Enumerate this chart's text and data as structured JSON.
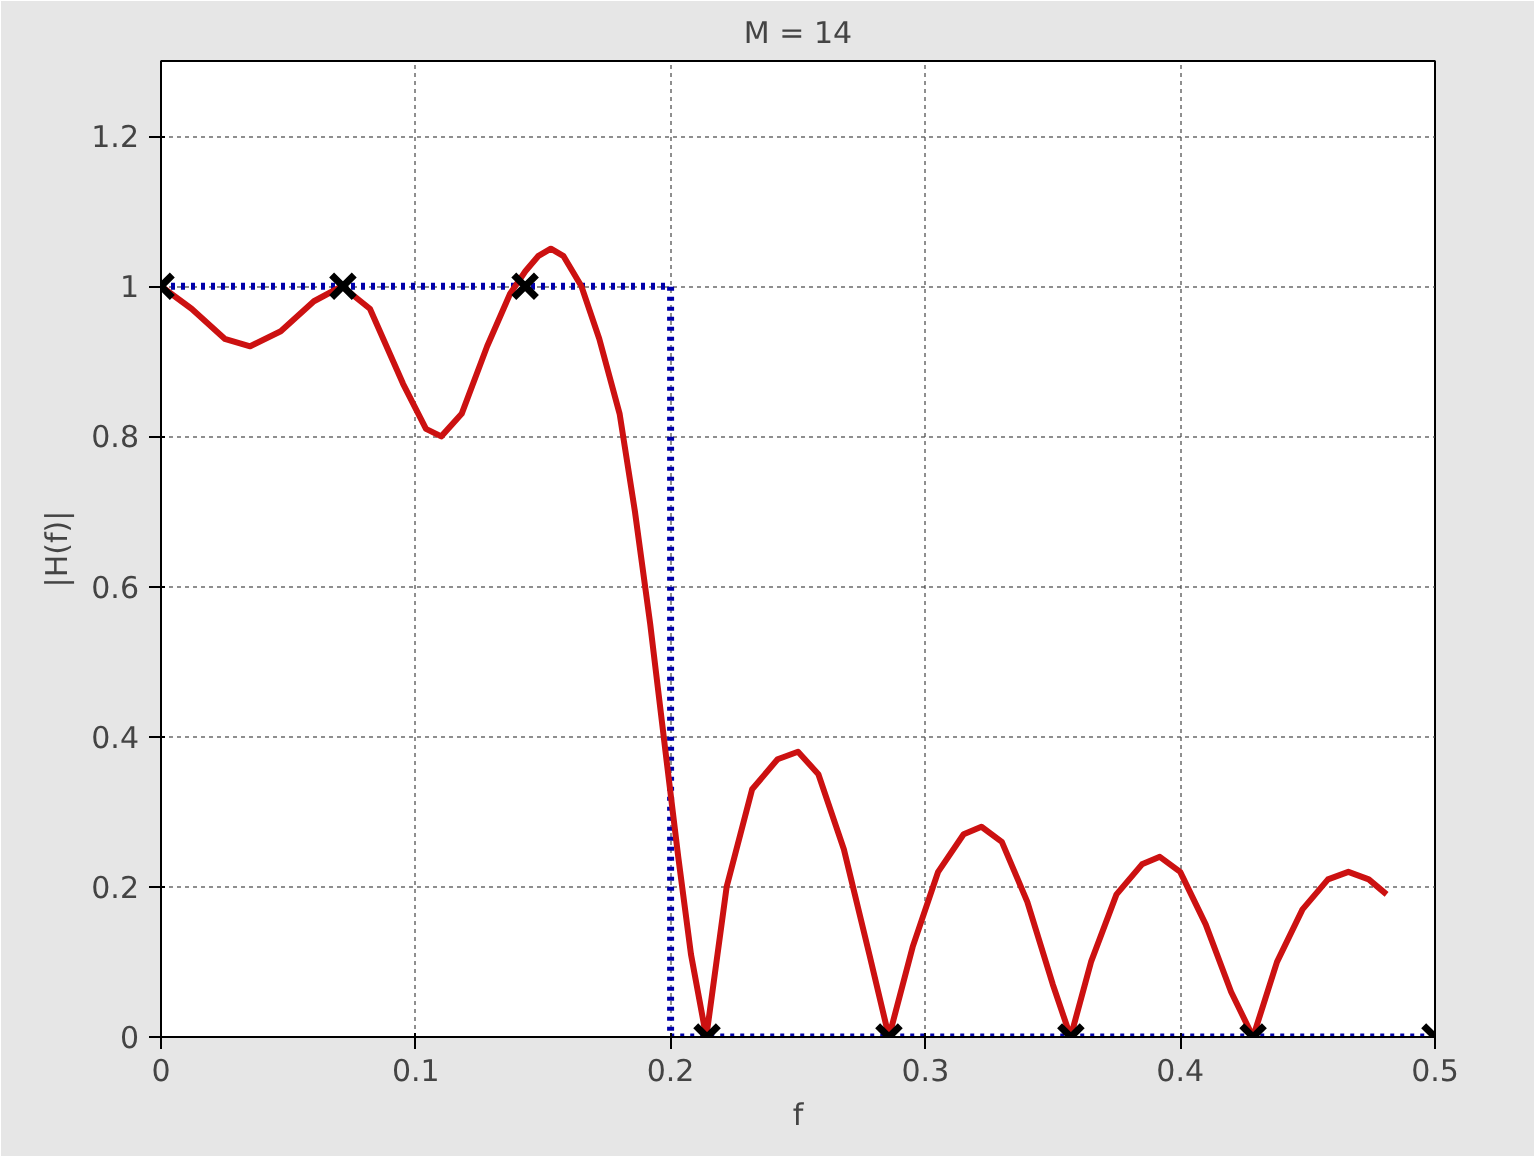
{
  "chart_data": {
    "type": "line",
    "title": "M = 14",
    "xlabel": "f",
    "ylabel": "|H(f)|",
    "xlim": [
      0,
      0.5
    ],
    "ylim": [
      0,
      1.3
    ],
    "xticks": [
      0,
      0.1,
      0.2,
      0.3,
      0.4,
      0.5
    ],
    "yticks": [
      0,
      0.2,
      0.4,
      0.6,
      0.8,
      1,
      1.2
    ],
    "grid": true,
    "series": [
      {
        "color": "#0000aa",
        "line_style": "dotted",
        "marker": "none",
        "x": [
          0,
          0.2,
          0.2,
          0.5
        ],
        "values": [
          1,
          1,
          0,
          0
        ]
      },
      {
        "color": "#cc1111",
        "line_style": "solid",
        "marker": "none",
        "x": [
          0,
          0.012,
          0.025,
          0.035,
          0.047,
          0.06,
          0.071,
          0.082,
          0.095,
          0.104,
          0.11,
          0.118,
          0.128,
          0.137,
          0.143,
          0.148,
          0.153,
          0.158,
          0.165,
          0.172,
          0.18,
          0.186,
          0.192,
          0.198,
          0.203,
          0.208,
          0.214,
          0.222,
          0.232,
          0.242,
          0.25,
          0.258,
          0.268,
          0.278,
          0.2857,
          0.295,
          0.305,
          0.315,
          0.322,
          0.33,
          0.34,
          0.35,
          0.357,
          0.365,
          0.375,
          0.385,
          0.392,
          0.4,
          0.41,
          0.42,
          0.4286,
          0.438,
          0.448,
          0.458,
          0.466,
          0.474,
          0.481
        ],
        "values": [
          1,
          0.97,
          0.93,
          0.92,
          0.94,
          0.98,
          1,
          0.97,
          0.87,
          0.81,
          0.8,
          0.83,
          0.92,
          0.99,
          1.02,
          1.04,
          1.05,
          1.04,
          1.0,
          0.93,
          0.83,
          0.7,
          0.55,
          0.38,
          0.24,
          0.11,
          0,
          0.2,
          0.33,
          0.37,
          0.38,
          0.35,
          0.25,
          0.11,
          0,
          0.12,
          0.22,
          0.27,
          0.28,
          0.26,
          0.18,
          0.07,
          0,
          0.1,
          0.19,
          0.23,
          0.24,
          0.22,
          0.15,
          0.06,
          0,
          0.1,
          0.17,
          0.21,
          0.22,
          0.21,
          0.19
        ]
      },
      {
        "type": "scatter",
        "color": "#000000",
        "marker": "cross",
        "x": [
          0,
          0.0714,
          0.1429,
          0.2143,
          0.2857,
          0.3571,
          0.4286,
          0.5
        ],
        "values": [
          1,
          1,
          1,
          0,
          0,
          0,
          0,
          0
        ]
      }
    ]
  }
}
